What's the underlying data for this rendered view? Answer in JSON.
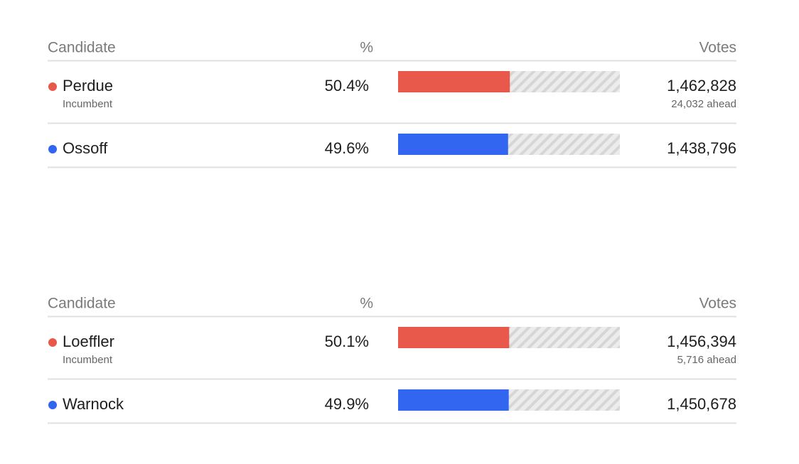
{
  "races": [
    {
      "headers": {
        "candidate": "Candidate",
        "pct": "%",
        "votes": "Votes"
      },
      "xlim": [
        0,
        100
      ],
      "rows": [
        {
          "name": "Perdue",
          "color": "#e8594b",
          "note": "Incumbent",
          "pct": {
            "value": 50.4,
            "label": "50.4%"
          },
          "votes": "1,462,828",
          "lead": "24,032 ahead"
        },
        {
          "name": "Ossoff",
          "color": "#3366f0",
          "pct": {
            "value": 49.6,
            "label": "49.6%"
          },
          "votes": "1,438,796"
        }
      ]
    },
    {
      "headers": {
        "candidate": "Candidate",
        "pct": "%",
        "votes": "Votes"
      },
      "xlim": [
        0,
        100
      ],
      "rows": [
        {
          "name": "Loeffler",
          "color": "#e8594b",
          "note": "Incumbent",
          "pct": {
            "value": 50.1,
            "label": "50.1%"
          },
          "votes": "1,456,394",
          "lead": "5,716 ahead"
        },
        {
          "name": "Warnock",
          "color": "#3366f0",
          "pct": {
            "value": 49.9,
            "label": "49.9%"
          },
          "votes": "1,450,678"
        }
      ]
    }
  ]
}
